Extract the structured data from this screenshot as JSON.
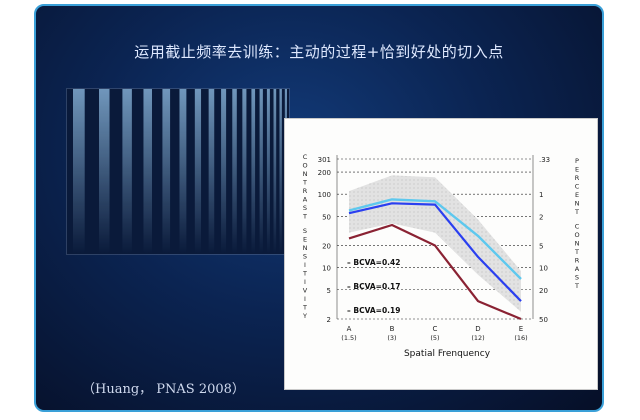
{
  "slide": {
    "title": "运用截止频率去训练：主动的过程+恰到好处的切入点",
    "citation": "（Huang， PNAS 2008）"
  },
  "colors": {
    "frame_border": "#3aa0d8",
    "series_light": "#5ec8ee",
    "series_blue": "#2a3ff0",
    "series_dark": "#8a2233",
    "band": "#cfcfcf"
  },
  "chart_data": {
    "type": "line",
    "xlabel": "Spatial Frenquency",
    "ylabel_left": "CONTRAST SENSITIVITY",
    "ylabel_right": "PERCENT CONTRAST",
    "categories": [
      {
        "letter": "A",
        "value": "(1.5)"
      },
      {
        "letter": "B",
        "value": "(3)"
      },
      {
        "letter": "C",
        "value": "(5)"
      },
      {
        "letter": "D",
        "value": "(12)"
      },
      {
        "letter": "E",
        "value": "(16)"
      }
    ],
    "y_scale": "log",
    "ylim": [
      2,
      301
    ],
    "left_ticks": [
      "301",
      "200",
      "100",
      "50",
      "20",
      "10",
      "5",
      "2"
    ],
    "left_tick_values": [
      301,
      200,
      100,
      50,
      20,
      10,
      5,
      2
    ],
    "right_ticks": [
      ".33",
      "1",
      "2",
      "5",
      "10",
      "20",
      "50"
    ],
    "right_tick_values": [
      0.33,
      1,
      2,
      5,
      10,
      20,
      50
    ],
    "gridlines": "dashed",
    "band": {
      "upper": [
        110,
        180,
        170,
        45,
        9
      ],
      "lower": [
        30,
        40,
        30,
        8,
        2.5
      ]
    },
    "series": [
      {
        "label": "BCVA=0.42",
        "color": "#5ec8ee",
        "values": [
          60,
          85,
          80,
          27,
          7
        ]
      },
      {
        "label": "BCVA=0.17",
        "color": "#2a3ff0",
        "values": [
          55,
          75,
          72,
          14,
          3.5
        ]
      },
      {
        "label": "BCVA=0.19",
        "color": "#8a2233",
        "values": [
          25,
          38,
          20,
          3.5,
          2
        ]
      }
    ]
  }
}
